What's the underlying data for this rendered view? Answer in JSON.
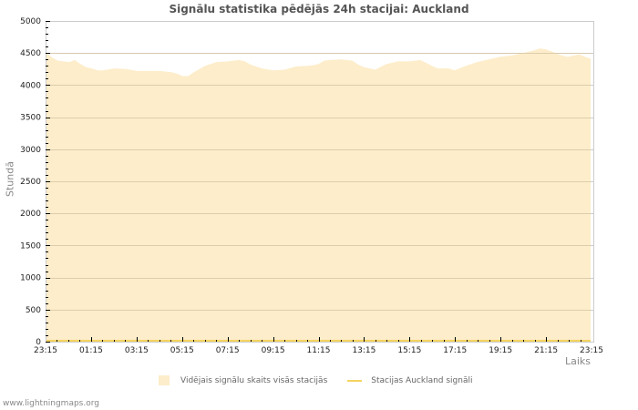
{
  "title": "Signālu statistika pēdējās 24h stacijai: Auckland",
  "footer": "www.lightningmaps.org",
  "colors": {
    "area_fill": "#fdedca",
    "station_line": "#f5d460",
    "grid": "#cccccc",
    "grid_inside": "#d8c8a8",
    "axis": "#cccccc"
  },
  "chart_data": {
    "type": "area",
    "title": "Signālu statistika pēdējās 24h stacijai: Auckland",
    "xlabel": "Laiks",
    "ylabel": "Stundā",
    "ylim": [
      0,
      5000
    ],
    "yticks": [
      0,
      500,
      1000,
      1500,
      2000,
      2500,
      3000,
      3500,
      4000,
      4500,
      5000
    ],
    "xtick_labels": [
      "23:15",
      "01:15",
      "03:15",
      "05:15",
      "07:15",
      "09:15",
      "11:15",
      "13:15",
      "15:15",
      "17:15",
      "19:15",
      "21:15",
      "23:15"
    ],
    "grid": true,
    "legend_position": "bottom",
    "legend": [
      "Vidējais signālu skaits visās stacijās",
      "Stacijas Auckland signāli"
    ],
    "series": [
      {
        "name": "Vidējais signālu skaits visās stacijās",
        "style": "area",
        "x": [
          "23:15",
          "23:30",
          "23:45",
          "00:15",
          "00:30",
          "00:45",
          "01:00",
          "01:15",
          "01:30",
          "01:45",
          "02:15",
          "02:45",
          "03:15",
          "03:45",
          "04:15",
          "04:45",
          "05:00",
          "05:15",
          "05:30",
          "05:45",
          "06:15",
          "06:45",
          "07:15",
          "07:45",
          "08:00",
          "08:15",
          "08:45",
          "09:15",
          "09:45",
          "10:15",
          "10:45",
          "11:00",
          "11:15",
          "11:30",
          "11:45",
          "12:15",
          "12:45",
          "13:00",
          "13:15",
          "13:30",
          "13:45",
          "14:15",
          "14:45",
          "15:15",
          "15:45",
          "16:15",
          "16:30",
          "17:00",
          "17:15",
          "17:45",
          "18:15",
          "18:45",
          "19:15",
          "19:45",
          "20:15",
          "20:45",
          "21:00",
          "21:15",
          "21:30",
          "21:45",
          "22:00",
          "22:15",
          "22:45",
          "23:00",
          "23:15"
        ],
        "values": [
          4500,
          4430,
          4380,
          4360,
          4390,
          4330,
          4280,
          4260,
          4230,
          4230,
          4260,
          4250,
          4220,
          4220,
          4220,
          4200,
          4180,
          4140,
          4140,
          4200,
          4300,
          4360,
          4370,
          4390,
          4370,
          4320,
          4260,
          4230,
          4240,
          4290,
          4300,
          4310,
          4330,
          4380,
          4390,
          4400,
          4380,
          4320,
          4280,
          4260,
          4240,
          4330,
          4370,
          4370,
          4390,
          4300,
          4260,
          4260,
          4230,
          4300,
          4360,
          4400,
          4440,
          4460,
          4500,
          4540,
          4570,
          4560,
          4530,
          4490,
          4460,
          4440,
          4480,
          4440,
          4410
        ],
        "approximate": true
      },
      {
        "name": "Stacijas Auckland signāli",
        "style": "line",
        "values_note": "flat at approximately 0 across full range",
        "value": 0
      }
    ]
  },
  "legend": {
    "items": [
      {
        "label": "Vidējais signālu skaits visās stacijās"
      },
      {
        "label": "Stacijas Auckland signāli"
      }
    ]
  }
}
